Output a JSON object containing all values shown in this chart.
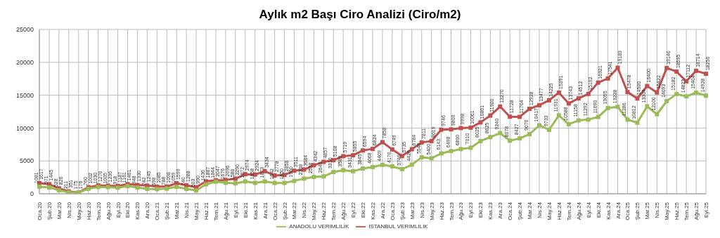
{
  "chart_data": {
    "type": "line",
    "title": "Aylık m2 Başı Ciro Analizi (Ciro/m2)",
    "categories": [
      "Oca.20",
      "Şub.20",
      "Mar.20",
      "Nis.20",
      "May.20",
      "Haz.20",
      "Tem.20",
      "Ağu.20",
      "Eyl.20",
      "Eki.20",
      "Kas.20",
      "Ara.20",
      "Oca.21",
      "Şub.21",
      "Mar.21",
      "Nis.21",
      "May.21",
      "Haz.21",
      "Tem.21",
      "Ağu.21",
      "Eyl.21",
      "Eki.21",
      "Kas.21",
      "Ara.21",
      "Oca.22",
      "Şub.22",
      "Mar.22",
      "Nis.22",
      "May.22",
      "Haz.22",
      "Tem.22",
      "Ağu.22",
      "Eyl.22",
      "Eki.22",
      "Kas.22",
      "Ara.22",
      "Oca.23",
      "Şub.23",
      "Mar.23",
      "Nis.23",
      "May.23",
      "Haz.23",
      "Tem.23",
      "Ağu.23",
      "Eyl.23",
      "Eki.23",
      "Kas.23",
      "Ara.23",
      "Oca.24",
      "Şub.24",
      "Mar.24",
      "Nis.24",
      "May.24",
      "Haz.24",
      "Tem.24",
      "Ağu.24",
      "Eyl.24",
      "Eki.24",
      "Kas.24",
      "Ara.24",
      "Oca.25",
      "Şub.25",
      "Mar.25",
      "Nis.25",
      "May.25",
      "Haz.25",
      "Tem.25",
      "Ağu.25",
      "Eyl.25"
    ],
    "series": [
      {
        "name": "İSTANBUL VERİMLİLİK",
        "color": "#c0504d",
        "values": [
          1617,
          1445,
          826,
          351,
          176,
          1002,
          1270,
          1236,
          1187,
          1461,
          1330,
          1245,
          1085,
          1098,
          1599,
          1288,
          990,
          1887,
          2047,
          2096,
          2290,
          2974,
          2924,
          3434,
          2778,
          2858,
          3511,
          3684,
          4342,
          4857,
          5108,
          5719,
          5855,
          6594,
          6824,
          7858,
          6749,
          5735,
          6784,
          7811,
          8019,
          9746,
          9800,
          9998,
          10061,
          10861,
          11900,
          13270,
          11728,
          11704,
          12928,
          13477,
          14225,
          15391,
          13743,
          14512,
          15192,
          16921,
          17541,
          19183,
          15478,
          14500,
          16400,
          15422,
          19140,
          18595,
          17112,
          18714,
          18256
        ]
      },
      {
        "name": "ANADOLU VERİMLİLİK",
        "color": "#9bbb59",
        "values": [
          1081,
          971,
          528,
          211,
          175,
          760,
          1030,
          1005,
          918,
          1161,
          948,
          742,
          698,
          788,
          1059,
          740,
          503,
          1436,
          1844,
          1676,
          1580,
          1872,
          1658,
          1873,
          1642,
          1650,
          1960,
          2308,
          2558,
          2640,
          3310,
          3589,
          3431,
          3845,
          4068,
          4409,
          4170,
          3740,
          4426,
          5546,
          5400,
          6143,
          6498,
          6800,
          7010,
          8025,
          8625,
          9240,
          8078,
          8427,
          9070,
          10417,
          9733,
          11931,
          10588,
          11158,
          11292,
          11690,
          13055,
          13228,
          11286,
          10812,
          13304,
          12100,
          14093,
          15182,
          14823,
          15404,
          14928
        ]
      }
    ],
    "ylim": [
      0,
      25000
    ],
    "yticks": [
      0,
      5000,
      10000,
      15000,
      20000,
      25000
    ],
    "grid": true,
    "legend": "bottom",
    "marker": "square",
    "line_style": "solid",
    "data_labels": true
  }
}
